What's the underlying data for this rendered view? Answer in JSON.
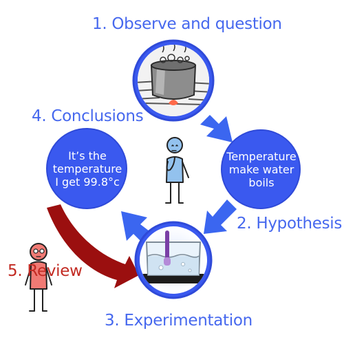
{
  "steps": {
    "observe": {
      "label": "1. Observe and question",
      "image": "boiling-pot-on-stove"
    },
    "hypothesis": {
      "label": "2. Hypothesis",
      "text_lines": [
        "Temperature",
        "make water",
        "boils"
      ]
    },
    "experimentation": {
      "label": "3. Experimentation",
      "image": "beaker-with-thermometer"
    },
    "conclusions": {
      "label": "4. Conclusions",
      "text_lines": [
        "It’s the",
        "temperature",
        "I get 99.8°c"
      ]
    },
    "review": {
      "label": "5. Review"
    }
  },
  "colors": {
    "circle": "#3a59ef",
    "circle_border": "#2f4ad8",
    "arrow_blue": "#3b66f0",
    "arrow_red": "#9b0f0f",
    "label_blue": "#4668ee",
    "label_red": "#c22a22",
    "figure_blue": "#93c2ee",
    "figure_red": "#f07a74"
  },
  "figures": {
    "thinker": "thinking-stick-figure",
    "reviewer": "reviewing-stick-figure"
  }
}
